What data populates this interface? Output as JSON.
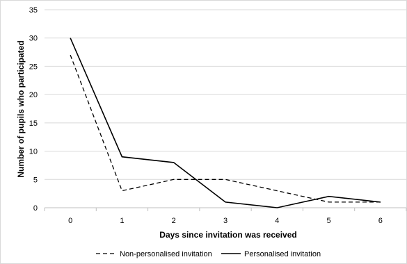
{
  "chart_data": {
    "type": "line",
    "x": [
      0,
      1,
      2,
      3,
      4,
      5,
      6
    ],
    "xlabel": "Days since invitation was received",
    "ylabel": "Number of pupils who participated",
    "ylim": [
      0,
      35
    ],
    "yticks": [
      0,
      5,
      10,
      15,
      20,
      25,
      30,
      35
    ],
    "grid": "horizontal",
    "legend_position": "bottom",
    "series": [
      {
        "name": "Non-personalised invitation",
        "style": "dashed",
        "color": "#000000",
        "values": [
          27,
          3,
          5,
          5,
          3,
          1,
          1
        ]
      },
      {
        "name": "Personalised invitation",
        "style": "solid",
        "color": "#000000",
        "values": [
          30,
          9,
          8,
          1,
          0,
          2,
          1
        ]
      }
    ]
  }
}
